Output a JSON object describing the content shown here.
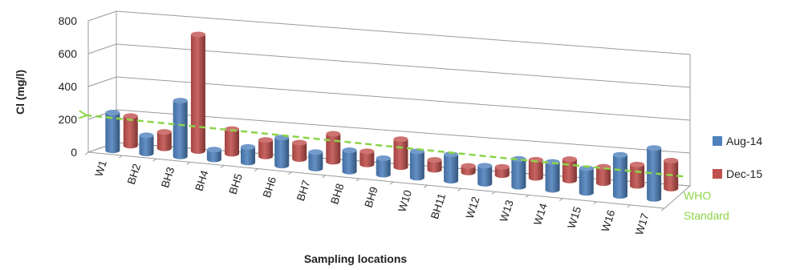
{
  "chart_data": {
    "type": "bar",
    "ylabel": "Cl (mg/l)",
    "xlabel": "Sampling locations",
    "ylim": [
      0,
      800
    ],
    "yticks": [
      0,
      200,
      400,
      600,
      800
    ],
    "categories": [
      "W1",
      "BH2",
      "BH3",
      "BH4",
      "BH5",
      "BH6",
      "BH7",
      "BH8",
      "BH9",
      "W10",
      "BH11",
      "W12",
      "W13",
      "W14",
      "W15",
      "W16",
      "W17"
    ],
    "series": [
      {
        "name": "Aug-14",
        "color": "#4f81bd",
        "values": [
          230,
          110,
          340,
          60,
          95,
          170,
          100,
          130,
          100,
          160,
          160,
          110,
          170,
          170,
          150,
          250,
          310
        ]
      },
      {
        "name": "Dec-15",
        "color": "#c0504d",
        "values": [
          180,
          100,
          710,
          150,
          100,
          100,
          170,
          80,
          170,
          60,
          40,
          50,
          110,
          130,
          100,
          130,
          170
        ]
      }
    ],
    "legend_position": "right",
    "reference_line": {
      "label_line1": "WHO",
      "label_line2": "Standard",
      "value": 250,
      "color": "#8cd447"
    },
    "grid": true
  }
}
